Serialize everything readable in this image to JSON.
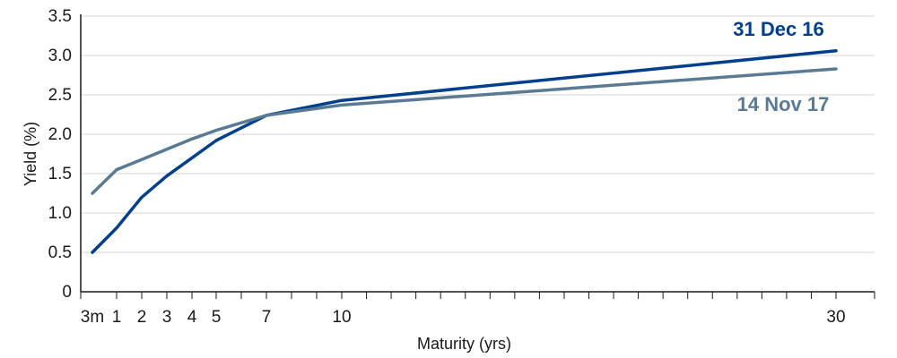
{
  "chart_data": {
    "type": "line",
    "xlabel": "Maturity (yrs)",
    "ylabel": "Yield (%)",
    "ylim": [
      0,
      3.5
    ],
    "yticks": [
      0,
      0.5,
      1.0,
      1.5,
      2.0,
      2.5,
      3.0,
      3.5
    ],
    "ytick_labels": [
      "0",
      "0.5",
      "1.0",
      "1.5",
      "2.0",
      "2.5",
      "3.0",
      "3.5"
    ],
    "xlim": [
      0,
      31
    ],
    "xticks": [
      0.25,
      1,
      2,
      3,
      4,
      5,
      7,
      10,
      30
    ],
    "xtick_labels": [
      "3m",
      "1",
      "2",
      "3",
      "4",
      "5",
      "7",
      "10",
      "30"
    ],
    "grid": true,
    "series": [
      {
        "name": "31 Dec 16",
        "color": "#003f8a",
        "x": [
          0.25,
          1,
          2,
          3,
          4,
          5,
          7,
          10,
          30
        ],
        "y": [
          0.5,
          0.81,
          1.2,
          1.47,
          1.7,
          1.92,
          2.24,
          2.43,
          3.06
        ]
      },
      {
        "name": "14 Nov 17",
        "color": "#5a7a94",
        "x": [
          0.25,
          1,
          2,
          3,
          4,
          5,
          7,
          10,
          30
        ],
        "y": [
          1.25,
          1.55,
          1.68,
          1.81,
          1.94,
          2.05,
          2.24,
          2.37,
          2.83
        ]
      }
    ]
  }
}
